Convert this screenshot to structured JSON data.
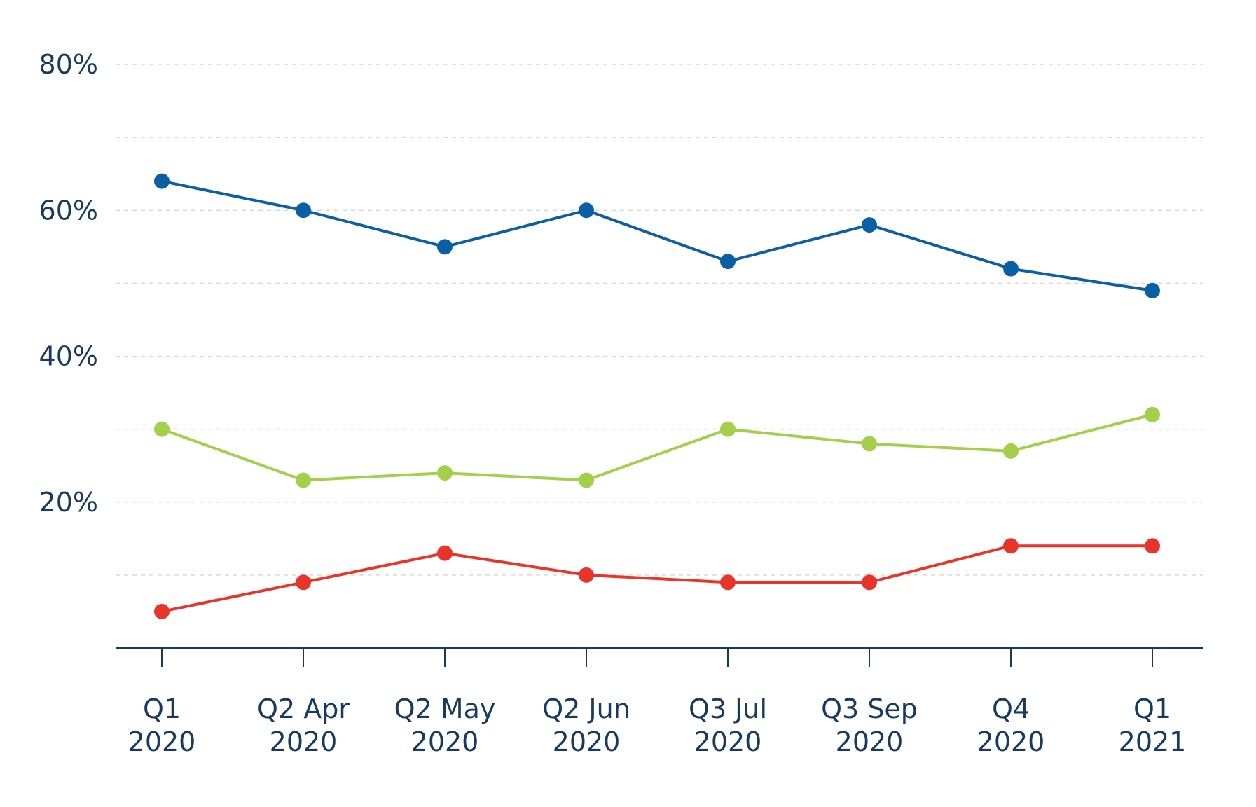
{
  "chart_data": {
    "type": "line",
    "categories": [
      [
        "Q1",
        "2020"
      ],
      [
        "Q2 Apr",
        "2020"
      ],
      [
        "Q2 May",
        "2020"
      ],
      [
        "Q2 Jun",
        "2020"
      ],
      [
        "Q3 Jul",
        "2020"
      ],
      [
        "Q3 Sep",
        "2020"
      ],
      [
        "Q4",
        "2020"
      ],
      [
        "Q1",
        "2021"
      ]
    ],
    "y_ticks": [
      {
        "value": 20,
        "label": "20%"
      },
      {
        "value": 40,
        "label": "40%"
      },
      {
        "value": 60,
        "label": "60%"
      },
      {
        "value": 80,
        "label": "80%"
      }
    ],
    "ylim": [
      0,
      80
    ],
    "grid_values": [
      10,
      20,
      30,
      40,
      50,
      60,
      70,
      80
    ],
    "grid": true,
    "series": [
      {
        "color": "#0b5fa5",
        "values": [
          64,
          60,
          55,
          60,
          53,
          58,
          52,
          49
        ]
      },
      {
        "color": "#a3cf4a",
        "values": [
          30,
          23,
          24,
          23,
          30,
          28,
          27,
          32
        ]
      },
      {
        "color": "#e8352a",
        "values": [
          5,
          9,
          13,
          10,
          9,
          9,
          14,
          14
        ]
      }
    ],
    "colors": {
      "axis": "#173a5e",
      "grid": "#d9d9d9",
      "text": "#173a5e"
    }
  }
}
